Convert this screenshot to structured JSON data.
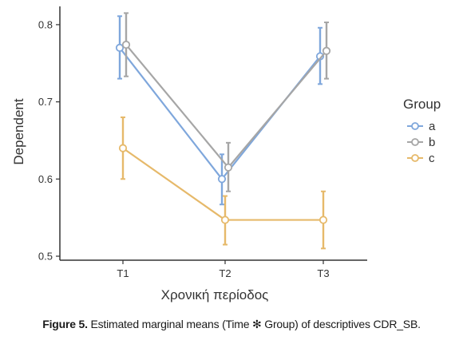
{
  "chart_data": {
    "type": "line",
    "categories": [
      "T1",
      "T2",
      "T3"
    ],
    "xlabel": "Χρονική περίοδος",
    "ylabel": "Dependent",
    "ylim": [
      0.5,
      0.83
    ],
    "yticks": [
      "0.5",
      "0.6",
      "0.7",
      "0.8"
    ],
    "legend_title": "Group",
    "legend_position": "right",
    "grid": false,
    "error_bars": true,
    "series": [
      {
        "name": "a",
        "color": "#7fa7dc",
        "values": [
          0.77,
          0.6,
          0.759
        ],
        "lower": [
          0.73,
          0.567,
          0.723
        ],
        "upper": [
          0.811,
          0.632,
          0.796
        ]
      },
      {
        "name": "b",
        "color": "#a6a6a6",
        "values": [
          0.774,
          0.615,
          0.766
        ],
        "lower": [
          0.733,
          0.584,
          0.73
        ],
        "upper": [
          0.815,
          0.647,
          0.803
        ]
      },
      {
        "name": "c",
        "color": "#e6b96a",
        "values": [
          0.64,
          0.547,
          0.547
        ],
        "lower": [
          0.6,
          0.515,
          0.51
        ],
        "upper": [
          0.68,
          0.578,
          0.584
        ]
      }
    ]
  },
  "caption": {
    "label": "Figure 5.",
    "text": "Estimated marginal means (Time ✻ Group) of descriptives CDR_SB."
  }
}
